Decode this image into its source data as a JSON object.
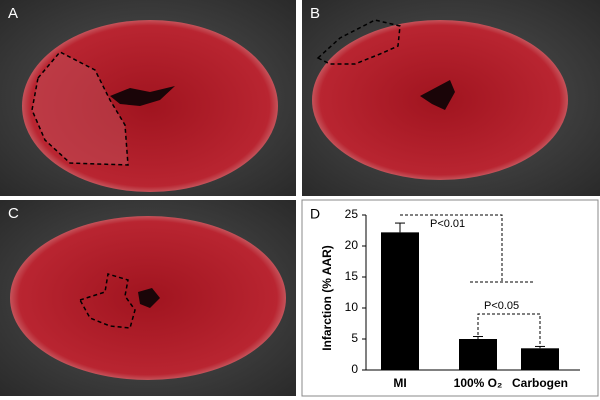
{
  "panels": {
    "a": "A",
    "b": "B",
    "c": "C",
    "d": "D"
  },
  "chart_data": {
    "type": "bar",
    "ylabel": "Infarction (% AAR)",
    "categories": [
      "MI",
      "100% O₂",
      "Carbogen"
    ],
    "values": [
      22.2,
      5.0,
      3.5
    ],
    "errors": [
      1.5,
      0.4,
      0.3
    ],
    "color": "#000000",
    "ylim": [
      0,
      25
    ],
    "yticks": [
      0,
      5,
      10,
      15,
      20,
      25
    ],
    "annotations": [
      "P<0.01",
      "P<0.05"
    ]
  }
}
